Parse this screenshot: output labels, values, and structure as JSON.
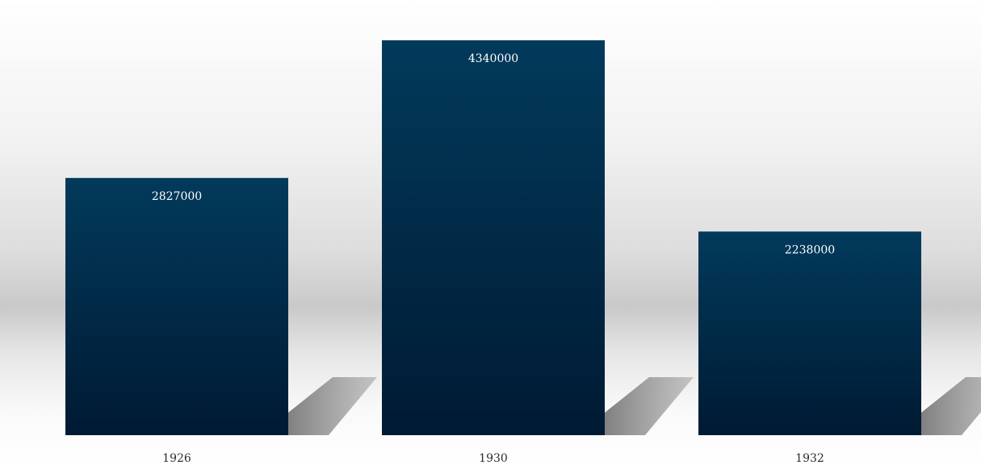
{
  "chart_data": {
    "type": "bar",
    "categories": [
      "1926",
      "1930",
      "1932"
    ],
    "values": [
      2827000,
      4340000,
      2238000
    ],
    "value_labels": [
      "2827000",
      "4340000",
      "2238000"
    ],
    "title": "",
    "xlabel": "",
    "ylabel": "",
    "ylim": [
      0,
      4340000
    ],
    "grid": false,
    "legend": "none",
    "colors": {
      "bar_top": "#023a5b",
      "bar_bottom": "#001a33",
      "label_text": "#ffffff",
      "tick_text": "#2b2b2b",
      "background_light": "#ffffff",
      "background_mid": "#c8c8c8",
      "shadow": "#8f8f8f"
    }
  }
}
